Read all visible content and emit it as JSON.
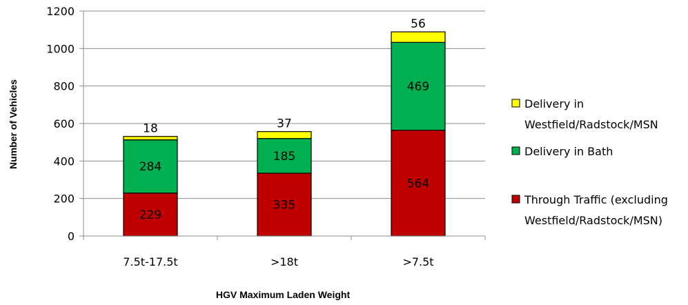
{
  "chart_data": {
    "type": "bar",
    "stacked": true,
    "categories": [
      "7.5t-17.5t",
      ">18t",
      ">7.5t"
    ],
    "series": [
      {
        "name": "Through Traffic (excluding Westfield/Radstock/MSN)",
        "color": "#c00000",
        "values": [
          229,
          335,
          564
        ]
      },
      {
        "name": "Delivery in Bath",
        "color": "#00b050",
        "values": [
          284,
          185,
          469
        ]
      },
      {
        "name": "Delivery in Westfield/Radstock/MSN",
        "color": "#ffff00",
        "values": [
          18,
          37,
          56
        ]
      }
    ],
    "xlabel": "HGV Maximum Laden Weight",
    "ylabel": "Number of Vehicles",
    "ylim": [
      0,
      1200
    ],
    "yticks": [
      0,
      200,
      400,
      600,
      800,
      1000,
      1200
    ],
    "grid": true,
    "legend_position": "right",
    "legend": [
      {
        "series": 2,
        "lines": [
          "Delivery in",
          "Westfield/Radstock/MSN"
        ]
      },
      {
        "series": 1,
        "lines": [
          "Delivery in Bath"
        ]
      },
      {
        "series": 0,
        "lines": [
          "Through Traffic (excluding",
          "Westfield/Radstock/MSN)"
        ]
      }
    ]
  }
}
